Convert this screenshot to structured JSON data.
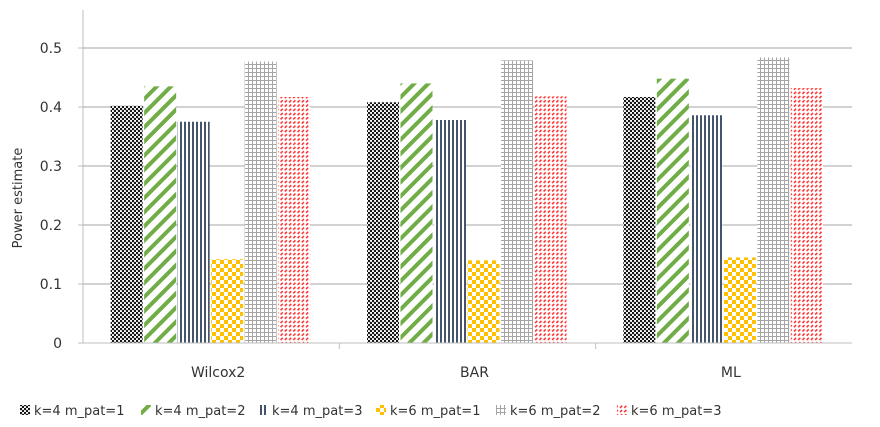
{
  "chart_data": {
    "type": "bar",
    "title": "",
    "xlabel": "",
    "ylabel": "Power estimate",
    "ylim": [
      0,
      0.5
    ],
    "yticks": [
      "0",
      "0.1",
      "0.2",
      "0.3",
      "0.4",
      "0.5"
    ],
    "categories": [
      "Wilcox2",
      "BAR",
      "ML"
    ],
    "grid": true,
    "legend_position": "bottom",
    "series": [
      {
        "name": "k=4 m_pat=1",
        "values": [
          0.402,
          0.408,
          0.417
        ],
        "color": "#111111",
        "pattern": "dots"
      },
      {
        "name": "k=4 m_pat=2",
        "values": [
          0.435,
          0.44,
          0.448
        ],
        "color": "#70ad47",
        "pattern": "wide-diagonal"
      },
      {
        "name": "k=4 m_pat=3",
        "values": [
          0.375,
          0.378,
          0.386
        ],
        "color": "#44546a",
        "pattern": "vertical-stripes"
      },
      {
        "name": "k=6 m_pat=1",
        "values": [
          0.142,
          0.14,
          0.145
        ],
        "color": "#ffc000",
        "pattern": "checker"
      },
      {
        "name": "k=6 m_pat=2",
        "values": [
          0.477,
          0.479,
          0.484
        ],
        "color": "#a5a5a5",
        "pattern": "grid"
      },
      {
        "name": "k=6 m_pat=3",
        "values": [
          0.417,
          0.418,
          0.432
        ],
        "color": "#ff3333",
        "pattern": "dashed-diagonal"
      }
    ]
  }
}
